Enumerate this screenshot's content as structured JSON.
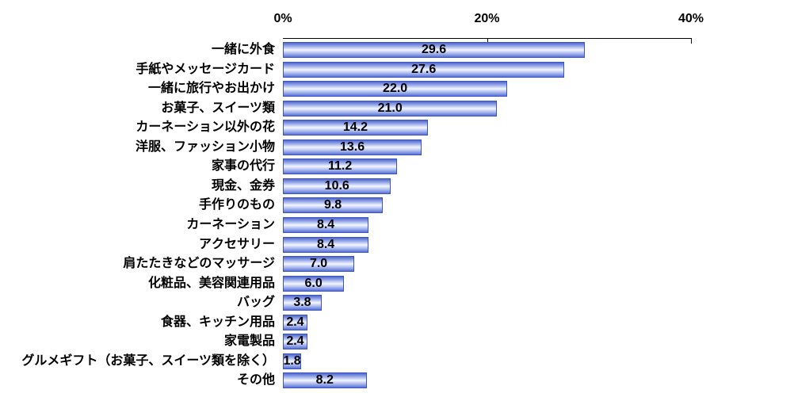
{
  "chart_data": {
    "type": "bar",
    "orientation": "horizontal",
    "title": "",
    "xlabel": "",
    "ylabel": "",
    "axis_position": "top",
    "xlim": [
      0,
      40
    ],
    "x_ticks": [
      {
        "label": "0%",
        "value": 0
      },
      {
        "label": "20%",
        "value": 20
      },
      {
        "label": "40%",
        "value": 40
      }
    ],
    "grid": false,
    "legend": "none",
    "categories": [
      "一緒に外食",
      "手紙やメッセージカード",
      "一緒に旅行やお出かけ",
      "お菓子、スイーツ類",
      "カーネーション以外の花",
      "洋服、ファッション小物",
      "家事の代行",
      "現金、金券",
      "手作りのもの",
      "カーネーション",
      "アクセサリー",
      "肩たたきなどのマッサージ",
      "化粧品、美容関連用品",
      "バッグ",
      "食器、キッチン用品",
      "家電製品",
      "グルメギフト（お菓子、スイーツ類を除く）",
      "その他"
    ],
    "values": [
      29.6,
      27.6,
      22.0,
      21.0,
      14.2,
      13.6,
      11.2,
      10.6,
      9.8,
      8.4,
      8.4,
      7.0,
      6.0,
      3.8,
      2.4,
      2.4,
      1.8,
      8.2
    ],
    "value_labels": [
      "29.6",
      "27.6",
      "22.0",
      "21.0",
      "14.2",
      "13.6",
      "11.2",
      "10.6",
      "9.8",
      "8.4",
      "8.4",
      "7.0",
      "6.0",
      "3.8",
      "2.4",
      "2.4",
      "1.8",
      "8.2"
    ]
  },
  "colors": {
    "background": "#FFFFFF",
    "text": "#000000",
    "axis_line": "#000000",
    "bar_border": "#3B55C4",
    "bar_gradient": [
      "#4E66CC",
      "#93A4E8",
      "#F4F7FE",
      "#9FAFEC",
      "#5A70D2"
    ]
  }
}
